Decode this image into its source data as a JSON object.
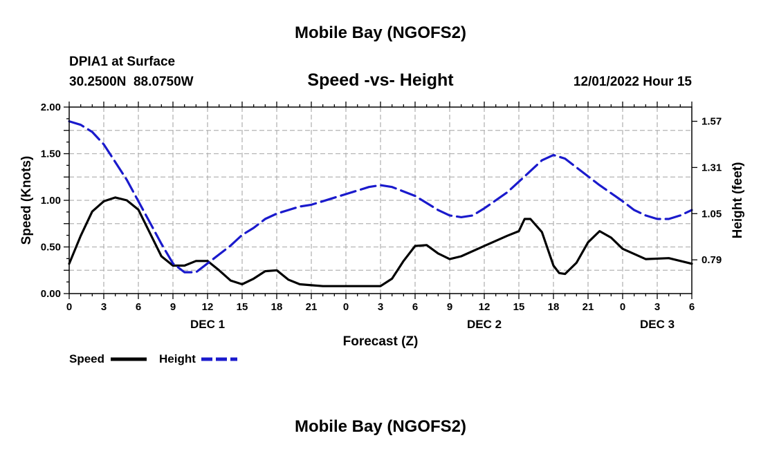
{
  "page": {
    "header_title": "Mobile Bay (NGOFS2)",
    "footer_title": "Mobile Bay (NGOFS2)"
  },
  "info": {
    "station": "DPIA1 at Surface",
    "coords": "30.2500N  88.0750W",
    "chart_title": "Speed -vs- Height",
    "datetime": "12/01/2022 Hour 15"
  },
  "legend": {
    "speed_label": "Speed",
    "height_label": "Height"
  },
  "chart_data": {
    "type": "line",
    "title": "Speed -vs- Height",
    "xlabel": "Forecast (Z)",
    "ylabel": "Speed (Knots)",
    "y2label": "Height (feet)",
    "x_unit": "hours from 12/01 00Z",
    "xlim": [
      0,
      54
    ],
    "ylim": [
      0,
      2.0
    ],
    "y2lim": [
      0.6,
      1.65
    ],
    "grid": true,
    "legend_position": "bottom-left",
    "x_ticks": [
      0,
      3,
      6,
      9,
      12,
      15,
      18,
      21,
      24,
      27,
      30,
      33,
      36,
      39,
      42,
      45,
      48,
      51,
      54
    ],
    "x_tick_labels": [
      "0",
      "3",
      "6",
      "9",
      "12",
      "15",
      "18",
      "21",
      "0",
      "3",
      "6",
      "9",
      "12",
      "15",
      "18",
      "21",
      "0",
      "3",
      "6"
    ],
    "day_labels": [
      {
        "hour": 12,
        "label": "DEC 1"
      },
      {
        "hour": 36,
        "label": "DEC 2"
      },
      {
        "hour": 51,
        "label": "DEC 3"
      }
    ],
    "y_ticks": [
      0.0,
      0.5,
      1.0,
      1.5,
      2.0
    ],
    "y_tick_labels": [
      "0.00",
      "0.50",
      "1.00",
      "1.50",
      "2.00"
    ],
    "y2_ticks": [
      0.79,
      1.05,
      1.31,
      1.57
    ],
    "y2_tick_labels": [
      "0.79",
      "1.05",
      "1.31",
      "1.57"
    ],
    "colors": {
      "speed": "#000000",
      "height": "#1a1acc",
      "grid": "#b4b4b4"
    },
    "series": [
      {
        "name": "Speed",
        "axis": "left",
        "style": "solid",
        "x": [
          0,
          1,
          2,
          3,
          4,
          5,
          6,
          7,
          8,
          9,
          10,
          11,
          12,
          13,
          14,
          15,
          16,
          17,
          18,
          19,
          20,
          21,
          22,
          24,
          26,
          27,
          28,
          29,
          30,
          31,
          32,
          33,
          34,
          36,
          38,
          39,
          39.5,
          40,
          41,
          42,
          42.5,
          43,
          44,
          45,
          46,
          47,
          48,
          50,
          52,
          54
        ],
        "y": [
          0.32,
          0.62,
          0.88,
          0.99,
          1.03,
          1.0,
          0.9,
          0.65,
          0.4,
          0.3,
          0.3,
          0.35,
          0.35,
          0.25,
          0.14,
          0.1,
          0.16,
          0.24,
          0.25,
          0.15,
          0.1,
          0.09,
          0.08,
          0.08,
          0.08,
          0.08,
          0.16,
          0.35,
          0.51,
          0.52,
          0.43,
          0.37,
          0.4,
          0.51,
          0.62,
          0.67,
          0.8,
          0.8,
          0.66,
          0.3,
          0.22,
          0.21,
          0.33,
          0.55,
          0.67,
          0.6,
          0.48,
          0.37,
          0.38,
          0.32
        ]
      },
      {
        "name": "Height",
        "axis": "right",
        "style": "dashed",
        "x": [
          0,
          1,
          2,
          3,
          4,
          5,
          6,
          7,
          8,
          9,
          10,
          11,
          12,
          13,
          14,
          15,
          16,
          17,
          18,
          19,
          20,
          21,
          22,
          24,
          26,
          27,
          28,
          30,
          31,
          32,
          33,
          34,
          35,
          36,
          38,
          40,
          41,
          42,
          43,
          44,
          46,
          48,
          49,
          50,
          51,
          52,
          53,
          54
        ],
        "y": [
          1.57,
          1.55,
          1.51,
          1.44,
          1.34,
          1.24,
          1.12,
          1.0,
          0.88,
          0.77,
          0.72,
          0.72,
          0.77,
          0.82,
          0.87,
          0.93,
          0.97,
          1.02,
          1.05,
          1.07,
          1.09,
          1.1,
          1.12,
          1.16,
          1.2,
          1.21,
          1.2,
          1.15,
          1.11,
          1.07,
          1.04,
          1.03,
          1.04,
          1.08,
          1.17,
          1.29,
          1.35,
          1.38,
          1.36,
          1.31,
          1.21,
          1.12,
          1.07,
          1.04,
          1.02,
          1.02,
          1.04,
          1.07
        ]
      }
    ]
  }
}
